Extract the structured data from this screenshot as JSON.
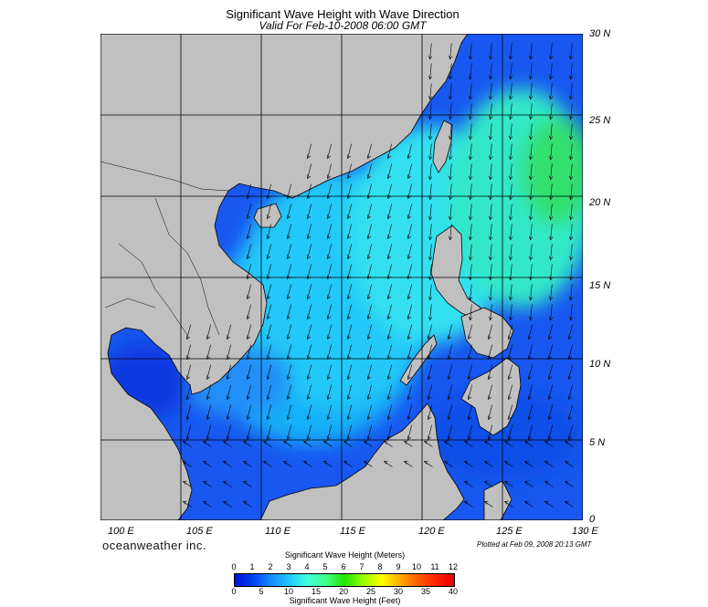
{
  "title": "Significant Wave Height with Wave Direction",
  "subtitle": "Valid For Feb-10-2008 06:00 GMT",
  "lat_labels": [
    "30 N",
    "25 N",
    "20 N",
    "15 N",
    "10 N",
    "5 N",
    "0"
  ],
  "lon_labels": [
    "100 E",
    "105 E",
    "110 E",
    "115 E",
    "120 E",
    "125 E",
    "130 E"
  ],
  "brand": "oceanweather inc.",
  "plotted": "Plotted at Feb 09, 2008 20:13 GMT",
  "legend": {
    "title": "Significant Wave Height (Meters)",
    "meters": [
      "0",
      "1",
      "2",
      "3",
      "4",
      "5",
      "6",
      "7",
      "8",
      "9",
      "10",
      "11",
      "12"
    ],
    "feet": [
      "0",
      "5",
      "10",
      "15",
      "20",
      "25",
      "30",
      "35",
      "40"
    ],
    "subtitle": "Significant Wave Height (Feet)"
  },
  "colors": {
    "land": "#c0c0c0",
    "deep_blue": "#0030e8",
    "cyan": "#30e8f0",
    "green": "#30e870"
  }
}
